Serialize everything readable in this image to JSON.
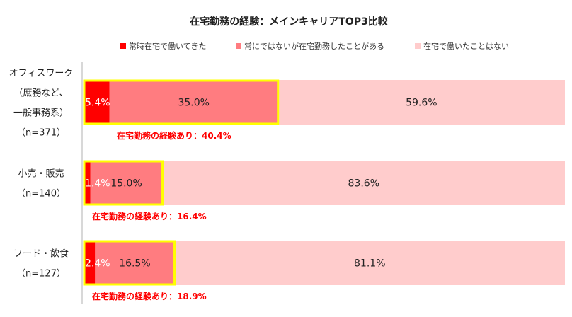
{
  "chart_data": {
    "type": "bar",
    "orientation": "horizontal",
    "stacked": true,
    "title": "在宅勤務の経験：メインキャリアTOP3比較",
    "xlim": [
      0,
      100
    ],
    "legend_position": "top",
    "categories": [
      [
        "オフィスワーク",
        "（庶務など、",
        "一般事務系）",
        "（n=371）"
      ],
      [
        "小売・販売",
        "（n=140）"
      ],
      [
        "フード・飲食",
        "（n=127）"
      ]
    ],
    "series": [
      {
        "name": "常時在宅で働いてきた",
        "color": "#ff0000",
        "values": [
          5.4,
          1.4,
          2.4
        ],
        "labels": [
          "5.4%",
          "1.4%",
          "2.4%"
        ]
      },
      {
        "name": "常にではないが在宅勤務したことがある",
        "color": "#ff7c80",
        "values": [
          35.0,
          15.0,
          16.5
        ],
        "labels": [
          "35.0%",
          "15.0%",
          "16.5%"
        ]
      },
      {
        "name": "在宅で働いたことはない",
        "color": "#ffcccc",
        "values": [
          59.6,
          83.6,
          81.1
        ],
        "labels": [
          "59.6%",
          "83.6%",
          "81.1%"
        ]
      }
    ],
    "highlight_color": "#ffff00",
    "annotation_color": "#ff0000",
    "annotations": [
      "在宅勤務の経験あり：40.4%",
      "在宅勤務の経験あり：16.4%",
      "在宅勤務の経験あり：18.9%"
    ]
  }
}
